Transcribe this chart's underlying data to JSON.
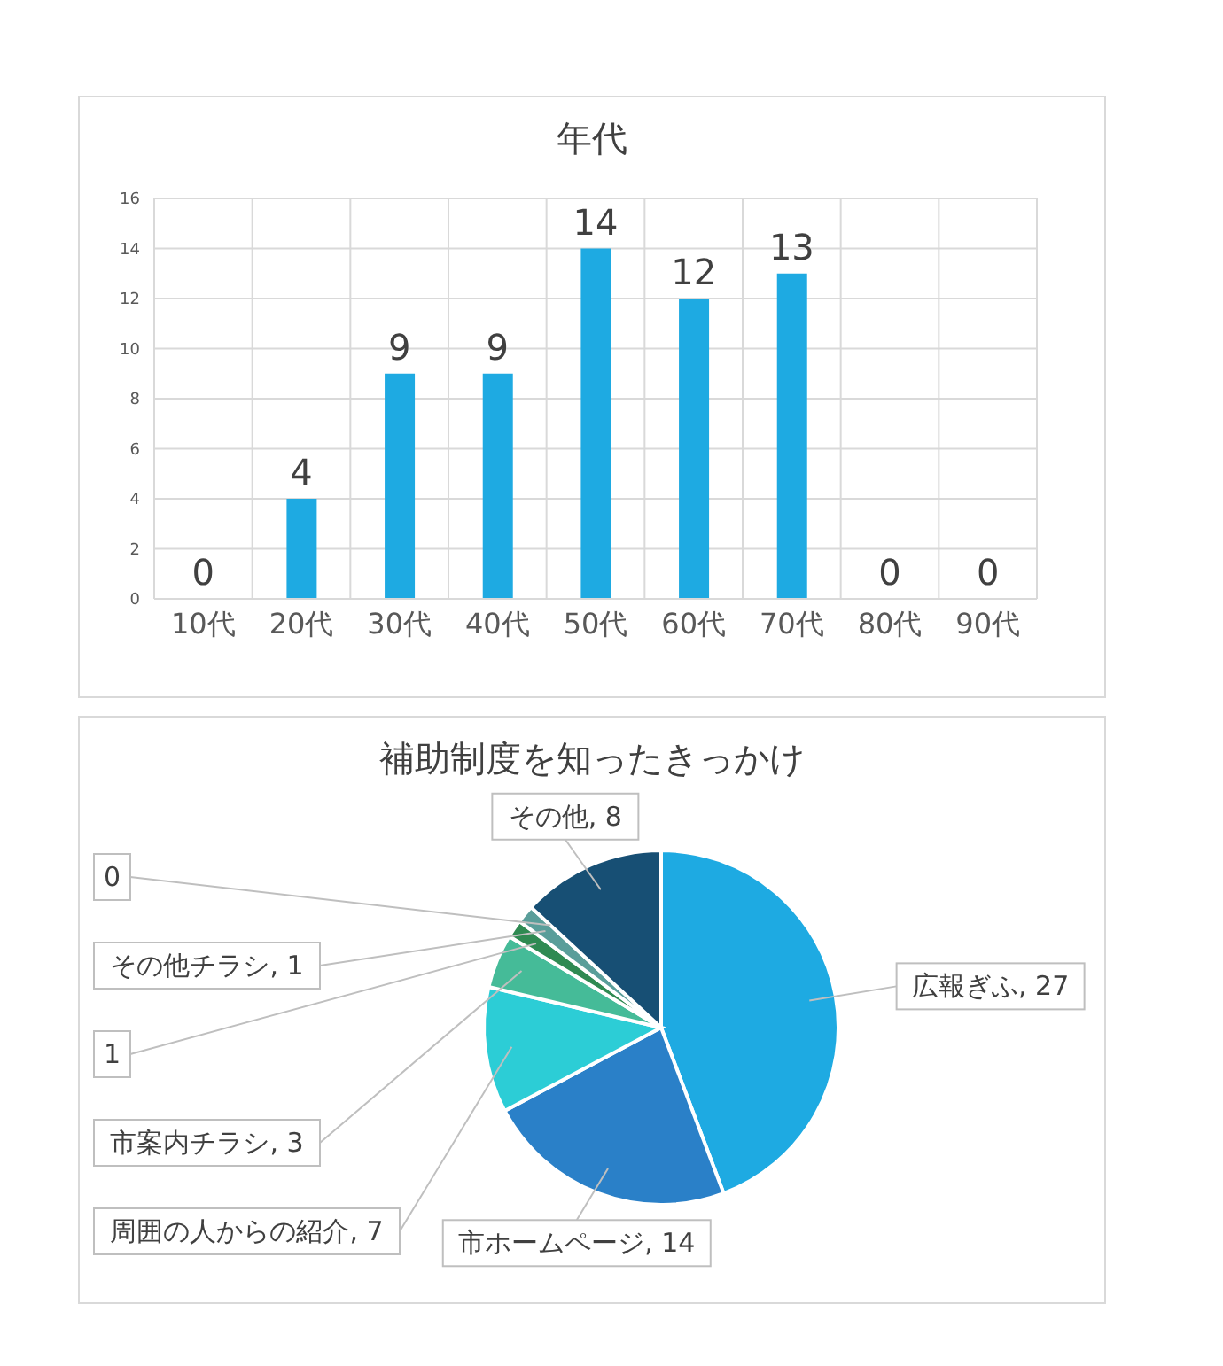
{
  "chart_data": [
    {
      "type": "bar",
      "title": "年代",
      "categories": [
        "10代",
        "20代",
        "30代",
        "40代",
        "50代",
        "60代",
        "70代",
        "80代",
        "90代"
      ],
      "values": [
        0,
        4,
        9,
        9,
        14,
        12,
        13,
        0,
        0
      ],
      "color": "#1eaae2",
      "ylim": [
        0,
        16
      ],
      "yticks": [
        0,
        2,
        4,
        6,
        8,
        10,
        12,
        14,
        16
      ],
      "grid": true,
      "data_labels": true,
      "legend": false
    },
    {
      "type": "pie",
      "title": "補助制度を知ったきっかけ",
      "categories": [
        "広報ぎふ",
        "市ホームページ",
        "周囲の人からの紹介",
        "市案内チラシ",
        null,
        "その他チラシ",
        null,
        "その他"
      ],
      "values": [
        27,
        14,
        7,
        3,
        1,
        1,
        0,
        8
      ],
      "colors": [
        "#1eaae2",
        "#2a80c8",
        "#2ccdd6",
        "#45bb98",
        "#2f8a52",
        "#5a9e9a",
        "#7fb3c9",
        "#174f74"
      ],
      "value_labels": [
        ", 27",
        ", 14",
        ", 7",
        ", 3",
        "1",
        ", 1",
        "0",
        ", 8"
      ],
      "legend": false
    }
  ]
}
